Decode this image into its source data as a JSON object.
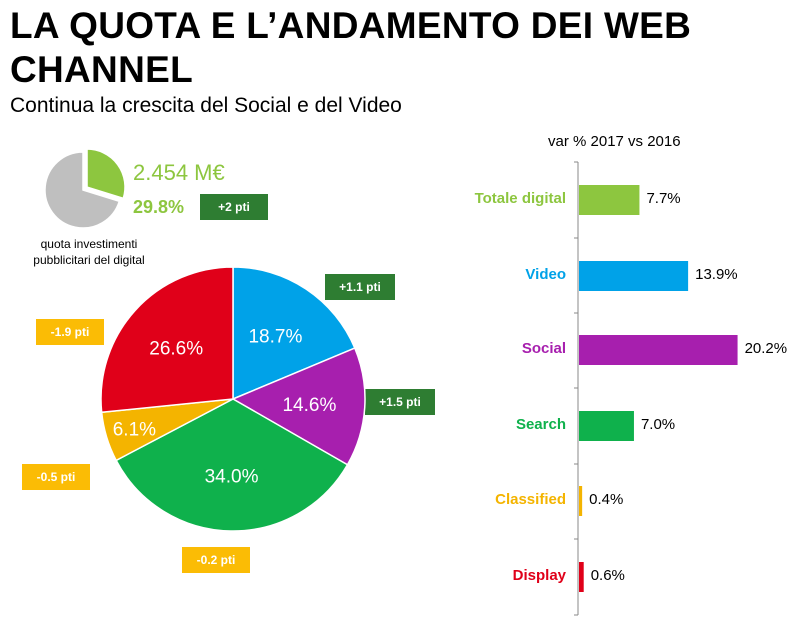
{
  "header": {
    "title": "LA QUOTA E L’ANDAMENTO DEI WEB CHANNEL",
    "subtitle": "Continua la crescita del Social e del Video"
  },
  "digital_share": {
    "value": "2.454 M€",
    "percent": "29.8%",
    "percent_value": 29.8,
    "delta": "+2 pti",
    "caption_line1": "quota investimenti",
    "caption_line2": "pubblicitari del digital"
  },
  "colors": {
    "totale": "#8dc63f",
    "video": "#00a2e8",
    "social": "#a71fae",
    "search": "#0fb14c",
    "classified": "#f4b400",
    "display": "#e00019",
    "grey": "#bfbfbf",
    "badge_green": "#2e7d32",
    "badge_yellow": "#fbbc05"
  },
  "chart_data": [
    {
      "type": "pie",
      "slices": [
        {
          "name": "Video",
          "value": 18.7,
          "label": "18.7%",
          "delta": "+1.1 pti"
        },
        {
          "name": "Social",
          "value": 14.6,
          "label": "14.6%",
          "delta": "+1.5 pti"
        },
        {
          "name": "Search",
          "value": 34.0,
          "label": "34.0%",
          "delta": "-0.2 pti"
        },
        {
          "name": "Classified",
          "value": 6.1,
          "label": "6.1%",
          "delta": "-0.5 pti"
        },
        {
          "name": "Display",
          "value": 26.6,
          "label": "26.6%",
          "delta": "-1.9 pti"
        }
      ]
    },
    {
      "type": "bar",
      "orientation": "horizontal",
      "title": "var % 2017 vs 2016",
      "categories": [
        "Totale digital",
        "Video",
        "Social",
        "Search",
        "Classified",
        "Display"
      ],
      "values": [
        7.7,
        13.9,
        20.2,
        7.0,
        0.4,
        0.6
      ],
      "labels": [
        "7.7%",
        "13.9%",
        "20.2%",
        "7.0%",
        "0.4%",
        "0.6%"
      ]
    }
  ]
}
